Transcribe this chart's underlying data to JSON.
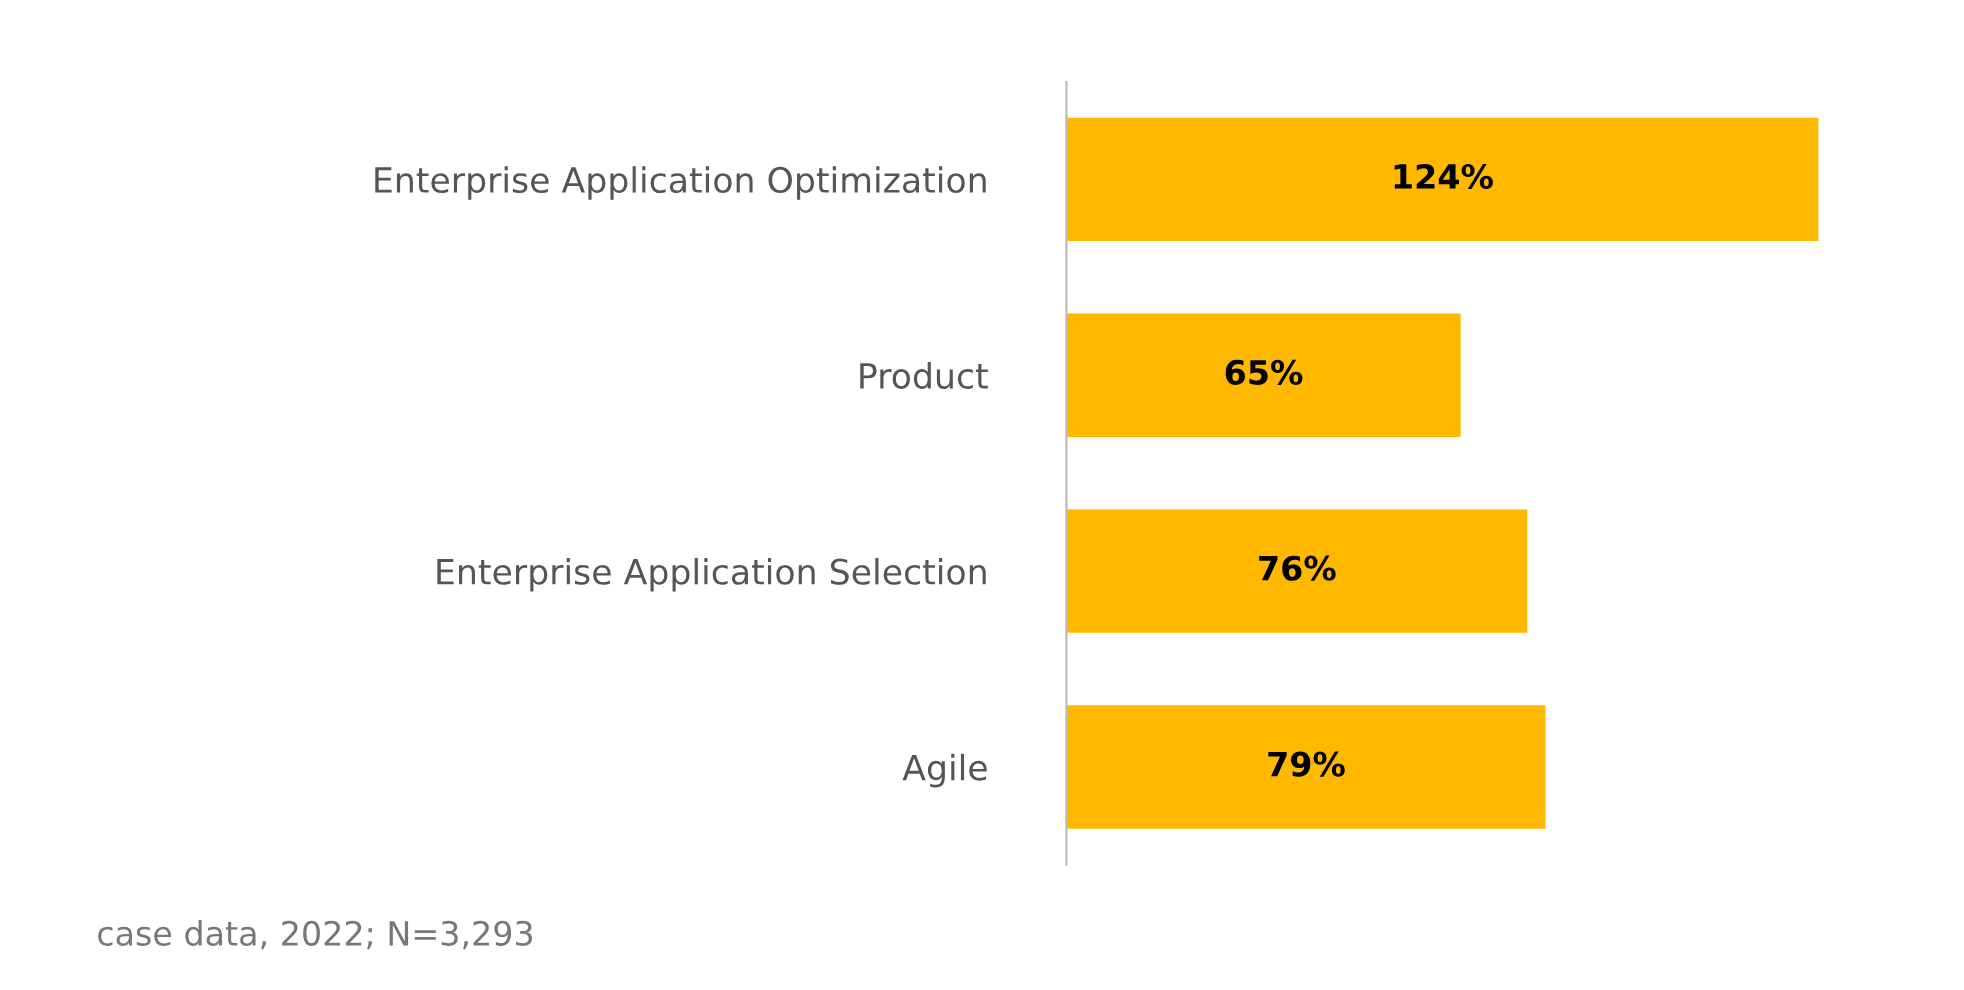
{
  "chart_data": {
    "type": "bar",
    "orientation": "horizontal",
    "categories": [
      "Enterprise Application Optimization",
      "Product",
      "Enterprise Application Selection",
      "Agile"
    ],
    "values": [
      124,
      65,
      76,
      79
    ],
    "value_labels": [
      "124%",
      "65%",
      "76%",
      "79%"
    ],
    "color": "#ffb800",
    "grid": false,
    "legend": false,
    "tick_labels": "y",
    "annotations": [
      "case data, 2022; N=3,293"
    ]
  }
}
